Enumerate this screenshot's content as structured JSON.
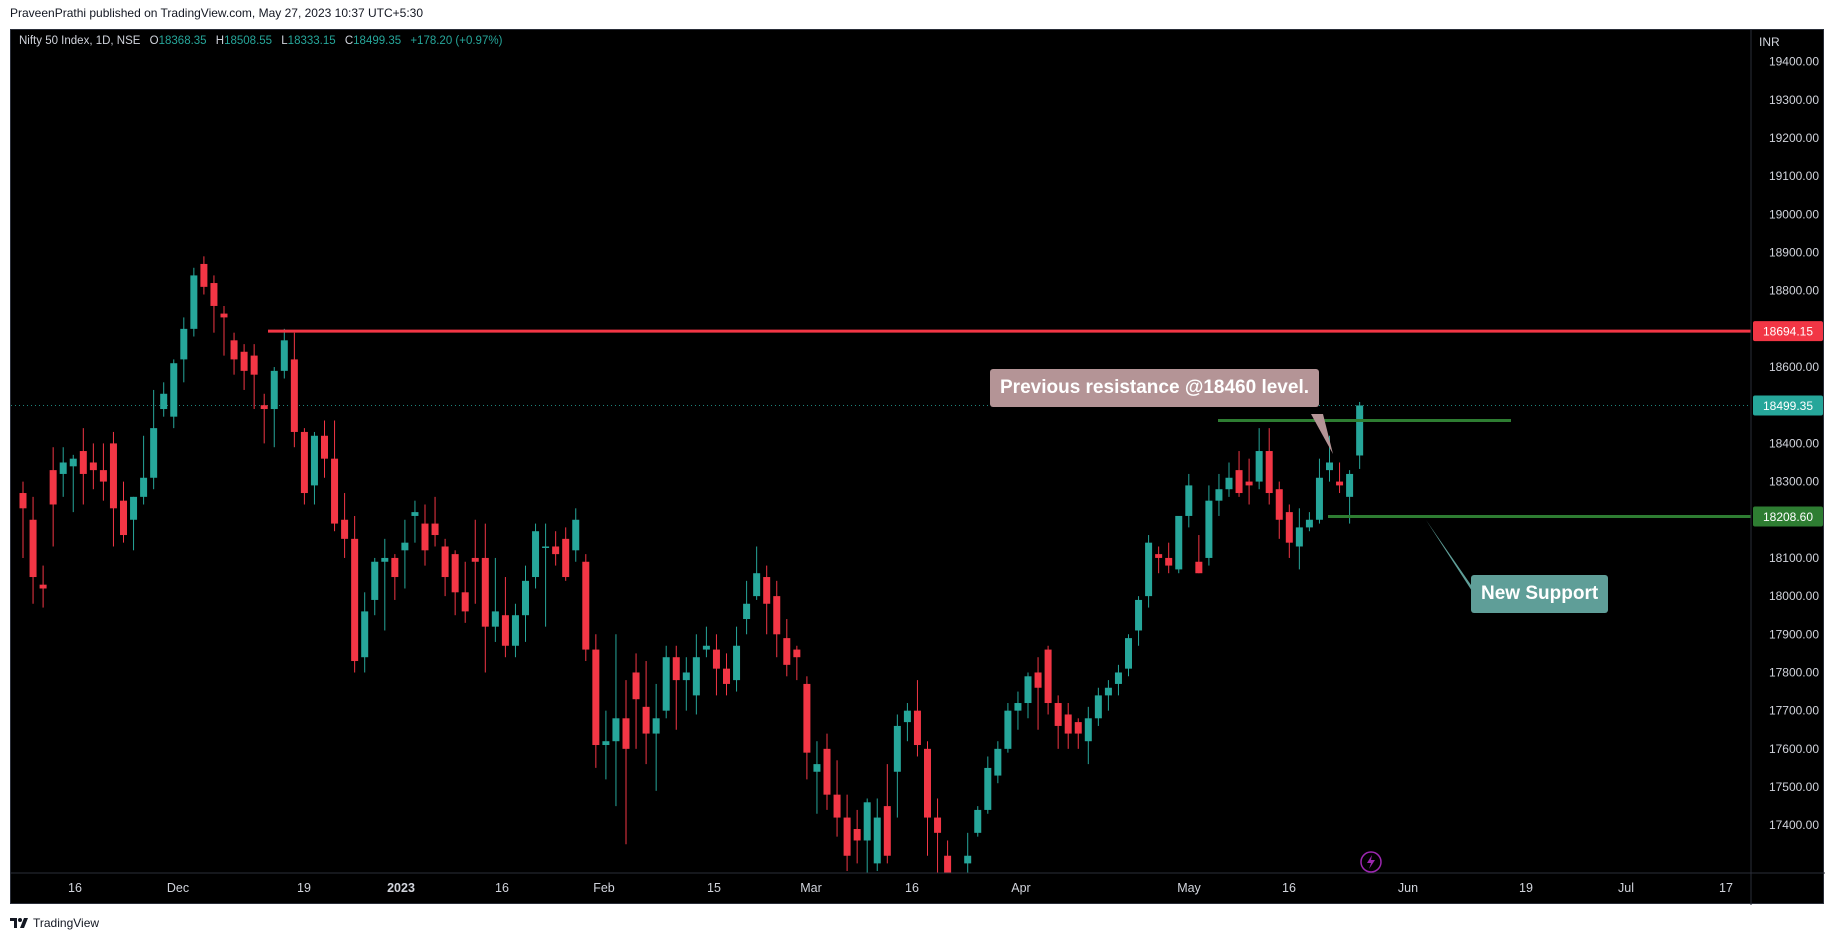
{
  "publisher_line": "PraveenPrathi published on TradingView.com, May 27, 2023 10:37 UTC+5:30",
  "footer_brand": "TradingView",
  "legend": {
    "symbol": "Nifty 50 Index, 1D, NSE",
    "o_label": "O",
    "o_value": "18368.35",
    "h_label": "H",
    "h_value": "18508.55",
    "l_label": "L",
    "l_value": "18333.15",
    "c_label": "C",
    "c_value": "18499.35",
    "change": "+178.20 (+0.97%)"
  },
  "currency": "INR",
  "colors": {
    "up": "#26a69a",
    "down": "#f23645",
    "resistance": "#f23645",
    "support": "#2e7d32",
    "background": "#000000"
  },
  "annotations": {
    "resistance_note": "Previous resistance @18460 level.",
    "support_note": "New Support"
  },
  "icons": [
    "lightning-icon",
    "tradingview-logo-icon"
  ],
  "chart_data": {
    "type": "candlestick",
    "title": "Nifty 50 Index, 1D, NSE",
    "ylim": [
      17300,
      19500
    ],
    "y_ticks": [
      "19400.00",
      "19300.00",
      "19200.00",
      "19100.00",
      "19000.00",
      "18900.00",
      "18800.00",
      "18700.00",
      "18600.00",
      "18500.00",
      "18400.00",
      "18300.00",
      "18200.00",
      "18100.00",
      "18000.00",
      "17900.00",
      "17800.00",
      "17700.00",
      "17600.00",
      "17500.00",
      "17400.00"
    ],
    "x_tick_labels": [
      "16",
      "Dec",
      "19",
      "2023",
      "16",
      "Feb",
      "15",
      "Mar",
      "16",
      "Apr",
      "May",
      "16",
      "Jun",
      "19",
      "Jul",
      "17"
    ],
    "price_labels": [
      "18694.15",
      "18499.35",
      "18208.60"
    ],
    "horizontal_lines": [
      {
        "name": "resistance",
        "value": 18694.15
      },
      {
        "name": "previous-resistance",
        "value": 18460
      },
      {
        "name": "new-support",
        "value": 18208.6
      }
    ],
    "last_close": 18499.35,
    "candles": [
      [
        18270,
        18300,
        18100,
        18230
      ],
      [
        18200,
        18260,
        17980,
        18050
      ],
      [
        18030,
        18080,
        17970,
        18020
      ],
      [
        18330,
        18390,
        18130,
        18240
      ],
      [
        18320,
        18390,
        18260,
        18350
      ],
      [
        18340,
        18370,
        18220,
        18360
      ],
      [
        18380,
        18440,
        18240,
        18320
      ],
      [
        18350,
        18400,
        18280,
        18330
      ],
      [
        18330,
        18400,
        18250,
        18300
      ],
      [
        18400,
        18430,
        18130,
        18230
      ],
      [
        18250,
        18300,
        18140,
        18160
      ],
      [
        18200,
        18260,
        18120,
        18260
      ],
      [
        18260,
        18420,
        18240,
        18310
      ],
      [
        18310,
        18540,
        18280,
        18440
      ],
      [
        18490,
        18560,
        18470,
        18530
      ],
      [
        18470,
        18620,
        18440,
        18610
      ],
      [
        18620,
        18730,
        18560,
        18700
      ],
      [
        18700,
        18860,
        18680,
        18840
      ],
      [
        18870,
        18890,
        18790,
        18810
      ],
      [
        18820,
        18840,
        18690,
        18760
      ],
      [
        18740,
        18760,
        18630,
        18730
      ],
      [
        18670,
        18690,
        18580,
        18620
      ],
      [
        18640,
        18660,
        18540,
        18590
      ],
      [
        18630,
        18660,
        18490,
        18580
      ],
      [
        18500,
        18530,
        18400,
        18490
      ],
      [
        18490,
        18600,
        18390,
        18590
      ],
      [
        18590,
        18700,
        18570,
        18670
      ],
      [
        18620,
        18690,
        18390,
        18430
      ],
      [
        18430,
        18440,
        18240,
        18270
      ],
      [
        18290,
        18430,
        18240,
        18420
      ],
      [
        18420,
        18460,
        18310,
        18360
      ],
      [
        18360,
        18460,
        18170,
        18190
      ],
      [
        18200,
        18270,
        18100,
        18150
      ],
      [
        18150,
        18210,
        17800,
        17830
      ],
      [
        17840,
        18010,
        17800,
        17960
      ],
      [
        17990,
        18100,
        17950,
        18090
      ],
      [
        18090,
        18150,
        17910,
        18100
      ],
      [
        18100,
        18110,
        17990,
        18050
      ],
      [
        18120,
        18200,
        18020,
        18140
      ],
      [
        18210,
        18250,
        18140,
        18220
      ],
      [
        18190,
        18240,
        18080,
        18120
      ],
      [
        18190,
        18260,
        18130,
        18160
      ],
      [
        18130,
        18150,
        18000,
        18050
      ],
      [
        18110,
        18120,
        17950,
        18010
      ],
      [
        18010,
        18090,
        17930,
        17960
      ],
      [
        18100,
        18200,
        17980,
        18090
      ],
      [
        18100,
        18190,
        17800,
        17920
      ],
      [
        17920,
        18100,
        17880,
        17960
      ],
      [
        17950,
        18050,
        17840,
        17870
      ],
      [
        17870,
        17980,
        17840,
        17950
      ],
      [
        17950,
        18080,
        17880,
        18040
      ],
      [
        18050,
        18190,
        18020,
        18170
      ],
      [
        18130,
        18190,
        17920,
        18130
      ],
      [
        18130,
        18170,
        18080,
        18110
      ],
      [
        18150,
        18180,
        18040,
        18050
      ],
      [
        18120,
        18230,
        18090,
        18200
      ],
      [
        18090,
        18110,
        17830,
        17860
      ],
      [
        17860,
        17900,
        17550,
        17610
      ],
      [
        17610,
        17700,
        17520,
        17620
      ],
      [
        17620,
        17900,
        17450,
        17680
      ],
      [
        17680,
        17780,
        17350,
        17600
      ],
      [
        17800,
        17850,
        17600,
        17730
      ],
      [
        17710,
        17830,
        17560,
        17640
      ],
      [
        17640,
        17770,
        17490,
        17680
      ],
      [
        17700,
        17870,
        17680,
        17840
      ],
      [
        17840,
        17870,
        17650,
        17780
      ],
      [
        17780,
        17840,
        17700,
        17800
      ],
      [
        17740,
        17900,
        17690,
        17840
      ],
      [
        17860,
        17920,
        17840,
        17870
      ],
      [
        17860,
        17900,
        17740,
        17810
      ],
      [
        17810,
        17850,
        17740,
        17770
      ],
      [
        17780,
        17920,
        17750,
        17870
      ],
      [
        17940,
        18040,
        17900,
        17980
      ],
      [
        18000,
        18130,
        17990,
        18060
      ],
      [
        18050,
        18080,
        17900,
        17980
      ],
      [
        18000,
        18040,
        17840,
        17900
      ],
      [
        17890,
        17940,
        17790,
        17820
      ],
      [
        17860,
        17870,
        17780,
        17840
      ],
      [
        17770,
        17790,
        17520,
        17590
      ],
      [
        17540,
        17620,
        17430,
        17560
      ],
      [
        17600,
        17640,
        17440,
        17480
      ],
      [
        17480,
        17570,
        17370,
        17420
      ],
      [
        17420,
        17480,
        17280,
        17320
      ],
      [
        17390,
        17440,
        17300,
        17360
      ],
      [
        17360,
        17470,
        17250,
        17460
      ],
      [
        17300,
        17470,
        17280,
        17420
      ],
      [
        17450,
        17560,
        17300,
        17320
      ],
      [
        17540,
        17690,
        17420,
        17660
      ],
      [
        17670,
        17720,
        17620,
        17700
      ],
      [
        17700,
        17780,
        17580,
        17610
      ],
      [
        17600,
        17620,
        17320,
        17420
      ],
      [
        17420,
        17470,
        17250,
        17380
      ],
      [
        17320,
        17360,
        17120,
        17160
      ],
      [
        17110,
        17260,
        17040,
        17250
      ],
      [
        17300,
        17380,
        17240,
        17320
      ],
      [
        17380,
        17450,
        17370,
        17440
      ],
      [
        17440,
        17580,
        17430,
        17550
      ],
      [
        17530,
        17620,
        17510,
        17600
      ],
      [
        17600,
        17720,
        17590,
        17700
      ],
      [
        17700,
        17750,
        17650,
        17720
      ],
      [
        17720,
        17800,
        17680,
        17790
      ],
      [
        17800,
        17840,
        17650,
        17760
      ],
      [
        17860,
        17870,
        17690,
        17720
      ],
      [
        17720,
        17740,
        17600,
        17660
      ],
      [
        17690,
        17720,
        17600,
        17640
      ],
      [
        17670,
        17680,
        17600,
        17640
      ],
      [
        17620,
        17710,
        17560,
        17680
      ],
      [
        17680,
        17760,
        17660,
        17740
      ],
      [
        17740,
        17780,
        17700,
        17760
      ],
      [
        17770,
        17820,
        17740,
        17800
      ],
      [
        17810,
        17900,
        17790,
        17890
      ],
      [
        17910,
        18000,
        17870,
        17990
      ],
      [
        18000,
        18160,
        17970,
        18140
      ],
      [
        18110,
        18130,
        18060,
        18100
      ],
      [
        18100,
        18140,
        18060,
        18080
      ],
      [
        18070,
        18200,
        18060,
        18210
      ],
      [
        18210,
        18320,
        18180,
        18290
      ],
      [
        18090,
        18160,
        18060,
        18060
      ],
      [
        18100,
        18290,
        18080,
        18250
      ],
      [
        18250,
        18320,
        18210,
        18280
      ],
      [
        18280,
        18350,
        18260,
        18310
      ],
      [
        18330,
        18380,
        18260,
        18270
      ],
      [
        18300,
        18360,
        18240,
        18290
      ],
      [
        18300,
        18440,
        18280,
        18380
      ],
      [
        18380,
        18440,
        18240,
        18270
      ],
      [
        18280,
        18300,
        18150,
        18200
      ],
      [
        18220,
        18240,
        18100,
        18140
      ],
      [
        18130,
        18230,
        18070,
        18180
      ],
      [
        18180,
        18220,
        18170,
        18200
      ],
      [
        18200,
        18360,
        18190,
        18310
      ],
      [
        18330,
        18420,
        18300,
        18350
      ],
      [
        18300,
        18350,
        18270,
        18290
      ],
      [
        18260,
        18330,
        18190,
        18320
      ],
      [
        18368.35,
        18508.55,
        18333.15,
        18499.35
      ]
    ]
  }
}
